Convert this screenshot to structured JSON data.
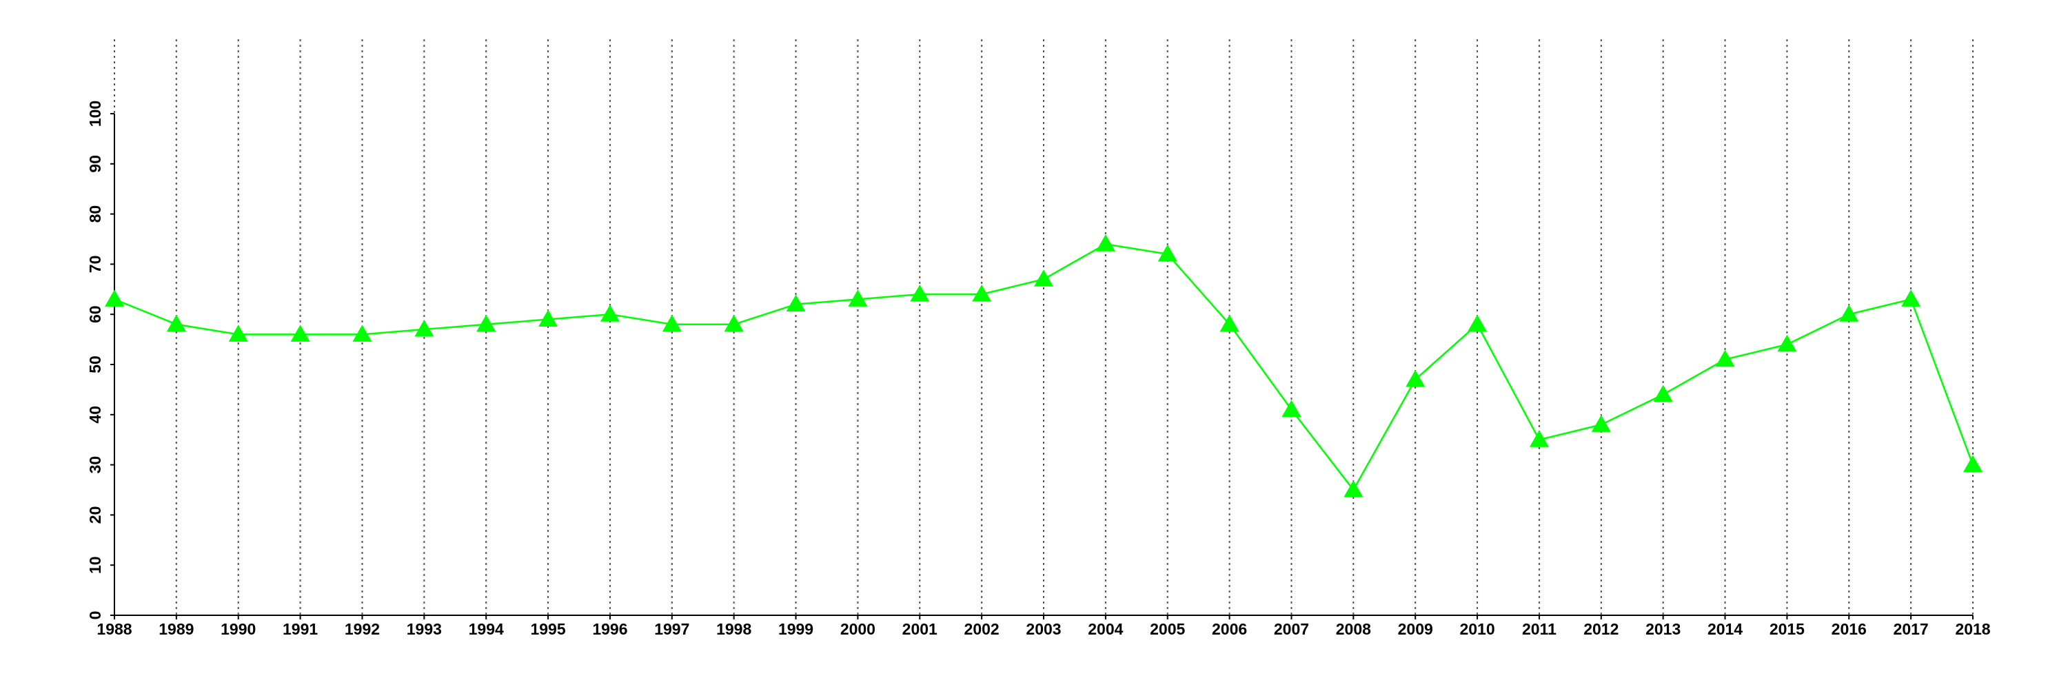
{
  "chart_data": {
    "type": "line",
    "x": [
      1988,
      1989,
      1990,
      1991,
      1992,
      1993,
      1994,
      1995,
      1996,
      1997,
      1998,
      1999,
      2000,
      2001,
      2002,
      2003,
      2004,
      2005,
      2006,
      2007,
      2008,
      2009,
      2010,
      2011,
      2012,
      2013,
      2014,
      2015,
      2016,
      2017,
      2018
    ],
    "series": [
      {
        "color": "#00ff00",
        "marker": "triangle",
        "values": [
          63,
          58,
          56,
          56,
          56,
          57,
          58,
          59,
          60,
          58,
          58,
          62,
          63,
          64,
          64,
          67,
          74,
          72,
          58,
          41,
          25,
          47,
          58,
          35,
          38,
          44,
          51,
          54,
          60,
          63,
          30
        ]
      }
    ],
    "xlim": [
      1988,
      2018
    ],
    "xticks": [
      1988,
      1989,
      1990,
      1991,
      1992,
      1993,
      1994,
      1995,
      1996,
      1997,
      1998,
      1999,
      2000,
      2001,
      2002,
      2003,
      2004,
      2005,
      2006,
      2007,
      2008,
      2009,
      2010,
      2011,
      2012,
      2013,
      2014,
      2015,
      2016,
      2017,
      2018
    ],
    "ylim": [
      0,
      100
    ],
    "yticks": [
      0,
      10,
      20,
      30,
      40,
      50,
      60,
      70,
      80,
      90,
      100
    ],
    "grid": "x"
  }
}
